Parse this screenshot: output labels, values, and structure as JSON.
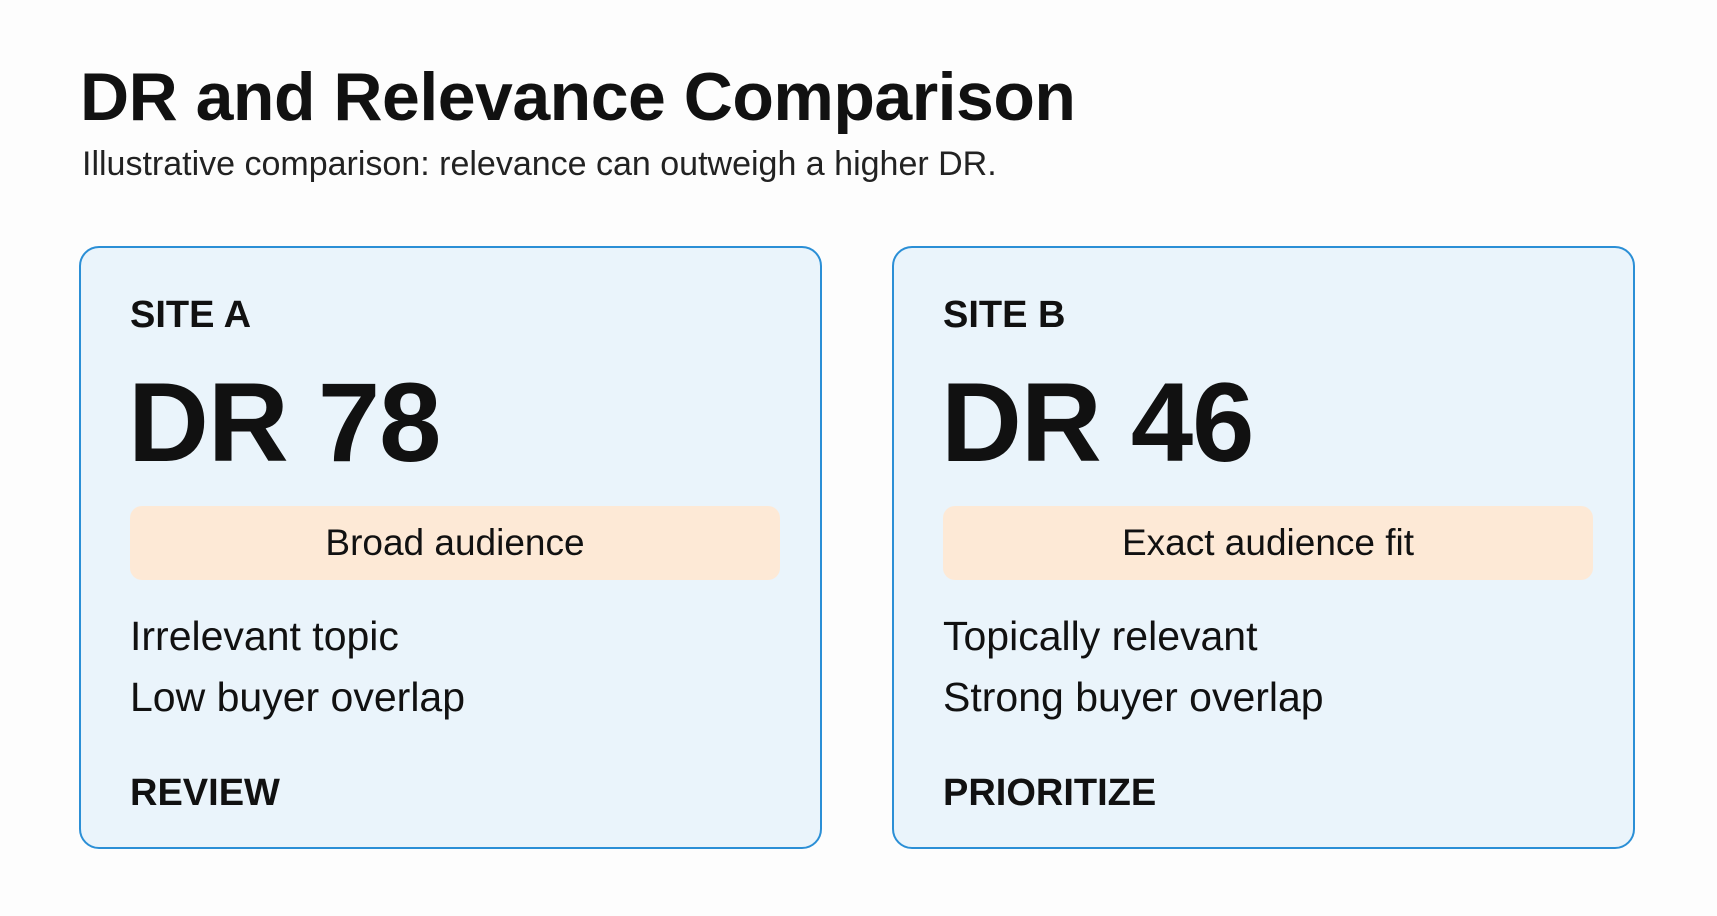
{
  "header": {
    "title": "DR and Relevance Comparison",
    "subtitle": "Illustrative comparison: relevance can outweigh a higher DR."
  },
  "cards": [
    {
      "label": "SITE A",
      "score": "DR 78",
      "tag": "Broad audience",
      "points": [
        "Irrelevant topic",
        "Low buyer overlap"
      ],
      "action": "REVIEW"
    },
    {
      "label": "SITE B",
      "score": "DR 46",
      "tag": "Exact audience fit",
      "points": [
        "Topically relevant",
        "Strong buyer overlap"
      ],
      "action": "PRIORITIZE"
    }
  ]
}
